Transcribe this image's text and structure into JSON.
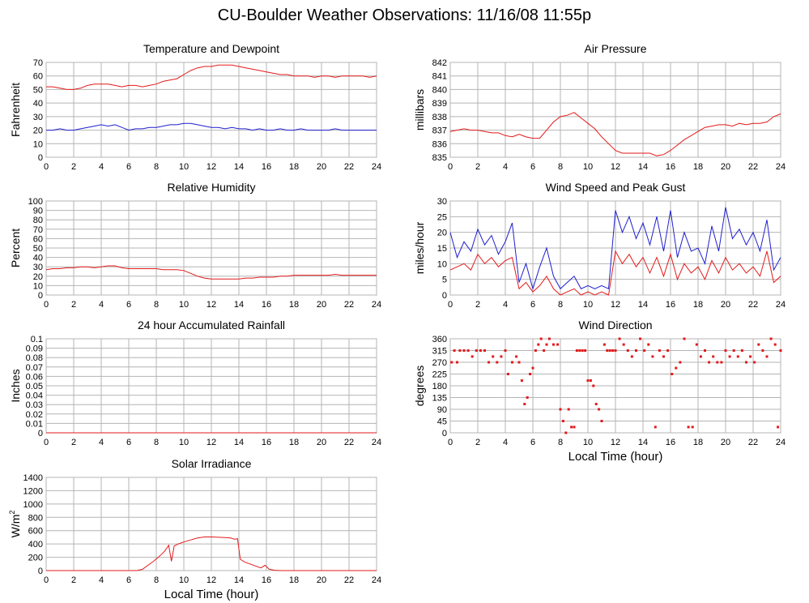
{
  "title": "CU-Boulder Weather Observations: 11/16/08 11:55p",
  "colors": {
    "red": "#e31a1c",
    "blue": "#1f1fd0",
    "grid": "#b4b4b4",
    "frame": "#888888"
  },
  "chart_data": [
    {
      "id": "temperature-dewpoint",
      "type": "line",
      "title": "Temperature and Dewpoint",
      "xlabel": "",
      "ylabel": "Fahrenheit",
      "xlim": [
        0,
        24
      ],
      "ylim": [
        0,
        70
      ],
      "xticks": [
        0,
        2,
        4,
        6,
        8,
        10,
        12,
        14,
        16,
        18,
        20,
        22,
        24
      ],
      "yticks": [
        0,
        10,
        20,
        30,
        40,
        50,
        60,
        70
      ],
      "series": [
        {
          "color": "#e31a1c",
          "x": [
            0,
            0.5,
            1,
            1.5,
            2,
            2.5,
            3,
            3.5,
            4,
            4.5,
            5,
            5.5,
            6,
            6.5,
            7,
            7.5,
            8,
            8.5,
            9,
            9.5,
            10,
            10.5,
            11,
            11.5,
            12,
            12.5,
            13,
            13.5,
            14,
            14.5,
            15,
            15.5,
            16,
            16.5,
            17,
            17.5,
            18,
            18.5,
            19,
            19.5,
            20,
            20.5,
            21,
            21.5,
            22,
            22.5,
            23,
            23.5,
            24
          ],
          "y": [
            52,
            52,
            51,
            50,
            50,
            51,
            53,
            54,
            54,
            54,
            53,
            52,
            53,
            53,
            52,
            53,
            54,
            56,
            57,
            58,
            61,
            64,
            66,
            67,
            67,
            68,
            68,
            68,
            67,
            66,
            65,
            64,
            63,
            62,
            61,
            61,
            60,
            60,
            60,
            59,
            60,
            60,
            59,
            60,
            60,
            60,
            60,
            59,
            60
          ]
        },
        {
          "color": "#1f1fd0",
          "x": [
            0,
            0.5,
            1,
            1.5,
            2,
            2.5,
            3,
            3.5,
            4,
            4.5,
            5,
            5.5,
            6,
            6.5,
            7,
            7.5,
            8,
            8.5,
            9,
            9.5,
            10,
            10.5,
            11,
            11.5,
            12,
            12.5,
            13,
            13.5,
            14,
            14.5,
            15,
            15.5,
            16,
            16.5,
            17,
            17.5,
            18,
            18.5,
            19,
            19.5,
            20,
            20.5,
            21,
            21.5,
            22,
            22.5,
            23,
            23.5,
            24
          ],
          "y": [
            20,
            20,
            21,
            20,
            20,
            21,
            22,
            23,
            24,
            23,
            24,
            22,
            20,
            21,
            21,
            22,
            22,
            23,
            24,
            24,
            25,
            25,
            24,
            23,
            22,
            22,
            21,
            22,
            21,
            21,
            20,
            21,
            20,
            20,
            21,
            20,
            20,
            21,
            20,
            20,
            20,
            20,
            21,
            20,
            20,
            20,
            20,
            20,
            20
          ]
        }
      ]
    },
    {
      "id": "air-pressure",
      "type": "line",
      "title": "Air Pressure",
      "xlabel": "",
      "ylabel": "millibars",
      "xlim": [
        0,
        24
      ],
      "ylim": [
        835,
        842
      ],
      "xticks": [
        0,
        2,
        4,
        6,
        8,
        10,
        12,
        14,
        16,
        18,
        20,
        22,
        24
      ],
      "yticks": [
        835,
        836,
        837,
        838,
        839,
        840,
        841,
        842
      ],
      "series": [
        {
          "color": "#e31a1c",
          "x": [
            0,
            0.5,
            1,
            1.5,
            2,
            2.5,
            3,
            3.5,
            4,
            4.5,
            5,
            5.5,
            6,
            6.5,
            7,
            7.5,
            8,
            8.5,
            9,
            9.5,
            10,
            10.5,
            11,
            11.5,
            12,
            12.5,
            13,
            13.5,
            14,
            14.5,
            15,
            15.5,
            16,
            16.5,
            17,
            17.5,
            18,
            18.5,
            19,
            19.5,
            20,
            20.5,
            21,
            21.5,
            22,
            22.5,
            23,
            23.5,
            24
          ],
          "y": [
            836.9,
            837.0,
            837.1,
            837.0,
            837.0,
            836.9,
            836.8,
            836.8,
            836.6,
            836.5,
            836.7,
            836.5,
            836.4,
            836.4,
            837.0,
            837.6,
            838.0,
            838.1,
            838.3,
            837.9,
            837.5,
            837.1,
            836.5,
            836.0,
            835.5,
            835.3,
            835.3,
            835.3,
            835.3,
            835.3,
            835.1,
            835.2,
            835.5,
            835.9,
            836.3,
            836.6,
            836.9,
            837.2,
            837.3,
            837.4,
            837.4,
            837.3,
            837.5,
            837.4,
            837.5,
            837.5,
            837.6,
            838.0,
            838.2
          ]
        }
      ]
    },
    {
      "id": "relative-humidity",
      "type": "line",
      "title": "Relative Humidity",
      "xlabel": "",
      "ylabel": "Percent",
      "xlim": [
        0,
        24
      ],
      "ylim": [
        0,
        100
      ],
      "xticks": [
        0,
        2,
        4,
        6,
        8,
        10,
        12,
        14,
        16,
        18,
        20,
        22,
        24
      ],
      "yticks": [
        0,
        10,
        20,
        30,
        40,
        50,
        60,
        70,
        80,
        90,
        100
      ],
      "series": [
        {
          "color": "#e31a1c",
          "x": [
            0,
            0.5,
            1,
            1.5,
            2,
            2.5,
            3,
            3.5,
            4,
            4.5,
            5,
            5.5,
            6,
            6.5,
            7,
            7.5,
            8,
            8.5,
            9,
            9.5,
            10,
            10.5,
            11,
            11.5,
            12,
            12.5,
            13,
            13.5,
            14,
            14.5,
            15,
            15.5,
            16,
            16.5,
            17,
            17.5,
            18,
            18.5,
            19,
            19.5,
            20,
            20.5,
            21,
            21.5,
            22,
            22.5,
            23,
            23.5,
            24
          ],
          "y": [
            27,
            28,
            28,
            29,
            29,
            30,
            30,
            29,
            30,
            31,
            31,
            29,
            28,
            28,
            28,
            28,
            28,
            27,
            27,
            27,
            26,
            23,
            20,
            18,
            17,
            17,
            17,
            17,
            17,
            18,
            18,
            19,
            19,
            19,
            20,
            20,
            21,
            21,
            21,
            21,
            21,
            21,
            22,
            21,
            21,
            21,
            21,
            21,
            21
          ]
        }
      ]
    },
    {
      "id": "wind-speed-gust",
      "type": "line",
      "title": "Wind Speed and Peak Gust",
      "xlabel": "",
      "ylabel": "miles/hour",
      "xlim": [
        0,
        24
      ],
      "ylim": [
        0,
        30
      ],
      "xticks": [
        0,
        2,
        4,
        6,
        8,
        10,
        12,
        14,
        16,
        18,
        20,
        22,
        24
      ],
      "yticks": [
        0,
        5,
        10,
        15,
        20,
        25,
        30
      ],
      "series": [
        {
          "color": "#1f1fd0",
          "x": [
            0,
            0.5,
            1,
            1.5,
            2,
            2.5,
            3,
            3.5,
            4,
            4.5,
            5,
            5.5,
            6,
            6.5,
            7,
            7.5,
            8,
            8.5,
            9,
            9.5,
            10,
            10.5,
            11,
            11.5,
            12,
            12.5,
            13,
            13.5,
            14,
            14.5,
            15,
            15.5,
            16,
            16.5,
            17,
            17.5,
            18,
            18.5,
            19,
            19.5,
            20,
            20.5,
            21,
            21.5,
            22,
            22.5,
            23,
            23.5,
            24
          ],
          "y": [
            20,
            12,
            17,
            14,
            21,
            16,
            19,
            13,
            17,
            23,
            4,
            10,
            2,
            9,
            15,
            6,
            2,
            4,
            6,
            2,
            3,
            2,
            3,
            2,
            27,
            20,
            25,
            18,
            23,
            16,
            25,
            14,
            27,
            12,
            20,
            14,
            15,
            10,
            22,
            14,
            28,
            18,
            21,
            16,
            20,
            14,
            24,
            8,
            12
          ]
        },
        {
          "color": "#e31a1c",
          "x": [
            0,
            0.5,
            1,
            1.5,
            2,
            2.5,
            3,
            3.5,
            4,
            4.5,
            5,
            5.5,
            6,
            6.5,
            7,
            7.5,
            8,
            8.5,
            9,
            9.5,
            10,
            10.5,
            11,
            11.5,
            12,
            12.5,
            13,
            13.5,
            14,
            14.5,
            15,
            15.5,
            16,
            16.5,
            17,
            17.5,
            18,
            18.5,
            19,
            19.5,
            20,
            20.5,
            21,
            21.5,
            22,
            22.5,
            23,
            23.5,
            24
          ],
          "y": [
            8,
            9,
            10,
            8,
            13,
            10,
            12,
            9,
            11,
            12,
            2,
            4,
            1,
            3,
            6,
            2,
            0,
            1,
            2,
            0,
            1,
            0,
            1,
            0,
            14,
            10,
            13,
            9,
            12,
            7,
            12,
            6,
            13,
            5,
            10,
            7,
            9,
            5,
            11,
            7,
            12,
            8,
            10,
            7,
            9,
            6,
            14,
            4,
            6
          ]
        }
      ]
    },
    {
      "id": "accumulated-rainfall",
      "type": "line",
      "title": "24 hour Accumulated Rainfall",
      "xlabel": "",
      "ylabel": "Inches",
      "xlim": [
        0,
        24
      ],
      "ylim": [
        0,
        0.1
      ],
      "xticks": [
        0,
        2,
        4,
        6,
        8,
        10,
        12,
        14,
        16,
        18,
        20,
        22,
        24
      ],
      "yticks": [
        0,
        0.01,
        0.02,
        0.03,
        0.04,
        0.05,
        0.06,
        0.07,
        0.08,
        0.09,
        0.1
      ],
      "series": [
        {
          "color": "#e31a1c",
          "x": [
            0,
            24
          ],
          "y": [
            0,
            0
          ]
        }
      ]
    },
    {
      "id": "wind-direction",
      "type": "scatter",
      "title": "Wind Direction",
      "xlabel": "Local Time (hour)",
      "ylabel": "degrees",
      "xlim": [
        0,
        24
      ],
      "ylim": [
        0,
        360
      ],
      "xticks": [
        0,
        2,
        4,
        6,
        8,
        10,
        12,
        14,
        16,
        18,
        20,
        22,
        24
      ],
      "yticks": [
        0,
        45,
        90,
        135,
        180,
        225,
        270,
        315,
        360
      ],
      "series": [
        {
          "color": "#e31a1c",
          "x": [
            0.1,
            0.3,
            0.5,
            0.7,
            1.0,
            1.3,
            1.6,
            1.9,
            2.2,
            2.5,
            2.8,
            3.1,
            3.4,
            3.7,
            4.0,
            4.2,
            4.5,
            4.8,
            5.0,
            5.2,
            5.4,
            5.6,
            5.8,
            6.0,
            6.2,
            6.4,
            6.6,
            6.8,
            7.0,
            7.2,
            7.5,
            7.8,
            8.0,
            8.2,
            8.4,
            8.6,
            8.8,
            9.0,
            9.2,
            9.4,
            9.6,
            9.8,
            10.0,
            10.2,
            10.4,
            10.6,
            10.8,
            11.0,
            11.2,
            11.4,
            11.6,
            11.8,
            12.0,
            12.3,
            12.6,
            12.9,
            13.2,
            13.5,
            13.8,
            14.1,
            14.4,
            14.7,
            14.9,
            15.2,
            15.5,
            15.8,
            16.1,
            16.4,
            16.7,
            17.0,
            17.3,
            17.6,
            17.9,
            18.2,
            18.5,
            18.8,
            19.1,
            19.4,
            19.7,
            20.0,
            20.3,
            20.6,
            20.9,
            21.2,
            21.5,
            21.8,
            22.1,
            22.4,
            22.7,
            23.0,
            23.3,
            23.6,
            23.8,
            24.0
          ],
          "y": [
            270,
            315,
            270,
            315,
            315,
            315,
            292,
            315,
            315,
            315,
            270,
            292,
            270,
            292,
            315,
            225,
            270,
            292,
            270,
            200,
            110,
            135,
            225,
            248,
            315,
            338,
            360,
            315,
            338,
            360,
            338,
            338,
            90,
            45,
            0,
            90,
            22,
            22,
            315,
            315,
            315,
            315,
            200,
            200,
            180,
            110,
            90,
            45,
            338,
            315,
            315,
            315,
            315,
            360,
            338,
            315,
            292,
            315,
            360,
            315,
            338,
            292,
            22,
            315,
            292,
            315,
            225,
            248,
            270,
            360,
            22,
            22,
            338,
            292,
            315,
            270,
            292,
            270,
            270,
            315,
            292,
            315,
            292,
            315,
            270,
            292,
            270,
            338,
            315,
            292,
            360,
            338,
            22,
            315
          ]
        }
      ]
    },
    {
      "id": "solar-irradiance",
      "type": "line",
      "title": "Solar Irradiance",
      "xlabel": "Local Time (hour)",
      "ylabel": "W/m",
      "ylabel_sup": "2",
      "xlim": [
        0,
        24
      ],
      "ylim": [
        0,
        1400
      ],
      "xticks": [
        0,
        2,
        4,
        6,
        8,
        10,
        12,
        14,
        16,
        18,
        20,
        22,
        24
      ],
      "yticks": [
        0,
        200,
        400,
        600,
        800,
        1000,
        1200,
        1400
      ],
      "series": [
        {
          "color": "#e31a1c",
          "x": [
            0,
            2,
            4,
            6,
            6.6,
            7.0,
            7.4,
            7.8,
            8.2,
            8.6,
            8.9,
            9.1,
            9.3,
            9.6,
            10.0,
            10.5,
            11.0,
            11.5,
            12.0,
            12.5,
            13.0,
            13.4,
            13.7,
            13.9,
            14.1,
            14.4,
            14.8,
            15.2,
            15.6,
            15.9,
            16.2,
            16.6,
            17.0,
            18,
            20,
            22,
            24
          ],
          "y": [
            0,
            0,
            0,
            0,
            0,
            20,
            80,
            140,
            210,
            290,
            380,
            140,
            370,
            400,
            430,
            460,
            490,
            505,
            505,
            500,
            495,
            490,
            470,
            480,
            170,
            130,
            100,
            70,
            40,
            80,
            20,
            5,
            0,
            0,
            0,
            0,
            0
          ]
        }
      ]
    }
  ]
}
